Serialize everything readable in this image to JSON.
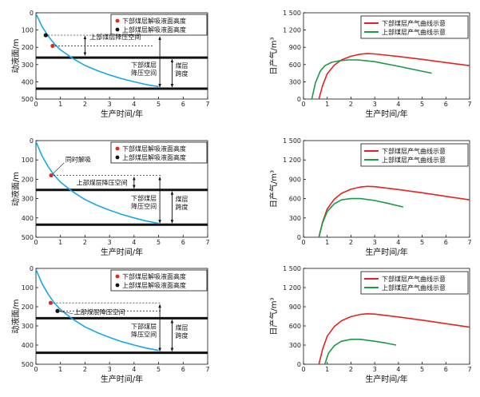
{
  "chart_data": [
    {
      "type": "line",
      "panel": "level",
      "row": 1,
      "xlabel": "生产时间/年",
      "ylabel": "动液面/m",
      "xlim": [
        0,
        7
      ],
      "ylim": [
        0,
        500
      ],
      "xticks": [
        "0",
        "1",
        "2",
        "3",
        "4",
        "5",
        "6",
        "7"
      ],
      "yticks": [
        "0",
        "100",
        "200",
        "300",
        "400",
        "500"
      ],
      "y_reversed": true,
      "series": [
        {
          "color": "#1aa7e8",
          "x": [
            0,
            0.25,
            0.5,
            0.75,
            1,
            1.5,
            2,
            2.5,
            3,
            3.5,
            4,
            4.5,
            5
          ],
          "y": [
            5,
            80,
            135,
            180,
            215,
            265,
            305,
            335,
            360,
            382,
            400,
            416,
            428
          ]
        }
      ],
      "legend": [
        {
          "label": "下部煤层解吸液面高度",
          "color": "#e52420"
        },
        {
          "label": "上部煤层解吸液面高度",
          "color": "#111111"
        }
      ],
      "points": [
        {
          "x": 0.4,
          "y": 130,
          "color": "#111111"
        },
        {
          "x": 0.68,
          "y": 192,
          "color": "#e52420"
        }
      ],
      "thick_lines": [
        260,
        440
      ],
      "annotations": [
        {
          "text": "上部煤层降压空间",
          "kind": "upper"
        },
        {
          "text": "下部煤层降压空间",
          "kind": "lower"
        },
        {
          "text": "煤层跨度",
          "kind": "span"
        }
      ]
    },
    {
      "type": "line",
      "panel": "gas",
      "row": 1,
      "xlabel": "生产时间/年",
      "ylabel": "日产气/m³",
      "xlim": [
        0,
        7
      ],
      "ylim": [
        0,
        1500
      ],
      "xticks": [
        "0",
        "1",
        "2",
        "3",
        "4",
        "5",
        "6",
        "7"
      ],
      "yticks": [
        "0",
        "300",
        "600",
        "900",
        "1 200",
        "1 500"
      ],
      "series": [
        {
          "name": "下部煤层产气曲线示意",
          "color": "#e52420",
          "x": [
            0.65,
            0.8,
            1,
            1.3,
            1.6,
            2,
            2.4,
            2.7,
            3,
            4,
            5,
            6,
            7
          ],
          "y": [
            0,
            230,
            440,
            590,
            680,
            745,
            780,
            790,
            785,
            740,
            690,
            635,
            580
          ]
        },
        {
          "name": "上部煤层产气曲线示意",
          "color": "#1a9a48",
          "x": [
            0.35,
            0.5,
            0.7,
            0.9,
            1.2,
            1.5,
            1.9,
            2.3,
            3,
            4,
            5.4
          ],
          "y": [
            0,
            280,
            480,
            580,
            640,
            665,
            680,
            680,
            650,
            570,
            450
          ]
        }
      ]
    },
    {
      "type": "line",
      "panel": "level",
      "row": 2,
      "xlabel": "生产时间/年",
      "ylabel": "动液面/m",
      "xlim": [
        0,
        7
      ],
      "ylim": [
        0,
        500
      ],
      "xticks": [
        "0",
        "1",
        "2",
        "3",
        "4",
        "5",
        "6",
        "7"
      ],
      "yticks": [
        "0",
        "100",
        "200",
        "300",
        "400",
        "500"
      ],
      "y_reversed": true,
      "series": [
        {
          "color": "#1aa7e8",
          "x": [
            0,
            0.25,
            0.5,
            0.75,
            1,
            1.5,
            2,
            2.5,
            3,
            3.5,
            4,
            4.5,
            5
          ],
          "y": [
            5,
            80,
            135,
            180,
            215,
            265,
            305,
            335,
            360,
            382,
            400,
            416,
            428
          ]
        }
      ],
      "legend": [
        {
          "label": "下部煤层解吸液面高度",
          "color": "#e52420"
        },
        {
          "label": "上部煤层解吸液面高度",
          "color": "#111111"
        }
      ],
      "points": [
        {
          "x": 0.62,
          "y": 180,
          "color": "#e52420"
        }
      ],
      "thick_lines": [
        255,
        435
      ],
      "annotations": [
        {
          "text": "同时解吸",
          "kind": "callout"
        },
        {
          "text": "上部煤层降压空间",
          "kind": "upper"
        },
        {
          "text": "下部煤层降压空间",
          "kind": "lower"
        },
        {
          "text": "煤层跨度",
          "kind": "span"
        }
      ]
    },
    {
      "type": "line",
      "panel": "gas",
      "row": 2,
      "xlabel": "生产时间/年",
      "ylabel": "日产气/m³",
      "xlim": [
        0,
        7
      ],
      "ylim": [
        0,
        1500
      ],
      "xticks": [
        "0",
        "1",
        "2",
        "3",
        "4",
        "5",
        "6",
        "7"
      ],
      "yticks": [
        "0",
        "300",
        "600",
        "900",
        "1 200",
        "1 500"
      ],
      "series": [
        {
          "name": "下部煤层产气曲线示意",
          "color": "#e52420",
          "x": [
            0.65,
            0.8,
            1,
            1.3,
            1.6,
            2,
            2.4,
            2.7,
            3,
            4,
            5,
            6,
            7
          ],
          "y": [
            0,
            230,
            440,
            590,
            680,
            745,
            780,
            790,
            785,
            740,
            690,
            635,
            580
          ]
        },
        {
          "name": "上部煤层产气曲线示意",
          "color": "#1a9a48",
          "x": [
            0.65,
            0.8,
            1,
            1.3,
            1.6,
            2,
            2.4,
            3,
            3.5,
            4.2
          ],
          "y": [
            0,
            220,
            400,
            520,
            580,
            600,
            600,
            570,
            530,
            470
          ]
        }
      ]
    },
    {
      "type": "line",
      "panel": "level",
      "row": 3,
      "xlabel": "生产时间/年",
      "ylabel": "动液面/m",
      "xlim": [
        0,
        7
      ],
      "ylim": [
        0,
        500
      ],
      "xticks": [
        "0",
        "1",
        "2",
        "3",
        "4",
        "5",
        "6",
        "7"
      ],
      "yticks": [
        "0",
        "100",
        "200",
        "300",
        "400",
        "500"
      ],
      "y_reversed": true,
      "series": [
        {
          "color": "#1aa7e8",
          "x": [
            0,
            0.25,
            0.5,
            0.75,
            1,
            1.5,
            2,
            2.5,
            3,
            3.5,
            4,
            4.5,
            5
          ],
          "y": [
            5,
            80,
            135,
            180,
            215,
            265,
            305,
            335,
            360,
            382,
            400,
            416,
            428
          ]
        }
      ],
      "legend": [
        {
          "label": "下部煤层解吸液面高度",
          "color": "#e52420"
        },
        {
          "label": "上部煤层解吸液面高度",
          "color": "#111111"
        }
      ],
      "points": [
        {
          "x": 0.6,
          "y": 180,
          "color": "#e52420"
        },
        {
          "x": 0.88,
          "y": 222,
          "color": "#111111"
        }
      ],
      "thick_lines": [
        260,
        440
      ],
      "annotations": [
        {
          "text": "上部煤层降压空间",
          "kind": "upper"
        },
        {
          "text": "下部煤层降压空间",
          "kind": "lower"
        },
        {
          "text": "煤层跨度",
          "kind": "span"
        }
      ]
    },
    {
      "type": "line",
      "panel": "gas",
      "row": 3,
      "xlabel": "生产时间/年",
      "ylabel": "日产气/m³",
      "xlim": [
        0,
        7
      ],
      "ylim": [
        0,
        1500
      ],
      "xticks": [
        "0",
        "1",
        "2",
        "3",
        "4",
        "5",
        "6",
        "7"
      ],
      "yticks": [
        "0",
        "300",
        "600",
        "900",
        "1 200",
        "1 500"
      ],
      "series": [
        {
          "name": "下部煤层产气曲线示意",
          "color": "#e52420",
          "x": [
            0.65,
            0.8,
            1,
            1.3,
            1.6,
            2,
            2.4,
            2.7,
            3,
            4,
            5,
            6,
            7
          ],
          "y": [
            0,
            230,
            440,
            590,
            680,
            745,
            780,
            790,
            785,
            740,
            690,
            635,
            580
          ]
        },
        {
          "name": "上部煤层产气曲线示意",
          "color": "#1a9a48",
          "x": [
            0.9,
            1.05,
            1.3,
            1.6,
            2,
            2.4,
            3,
            3.5,
            3.9
          ],
          "y": [
            0,
            170,
            290,
            360,
            390,
            390,
            360,
            330,
            300
          ]
        }
      ]
    }
  ]
}
